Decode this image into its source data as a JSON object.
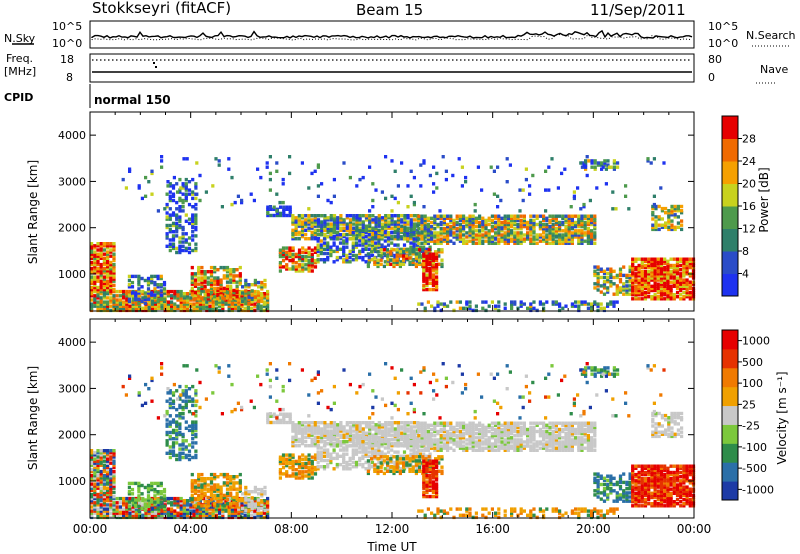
{
  "header": {
    "station": "Stokkseyri (fitACF)",
    "beam": "Beam 15",
    "date": "11/Sep/2011"
  },
  "noise_panel": {
    "left_label": "N.Sky",
    "left_ticks": [
      "10^5",
      "10^0"
    ],
    "right_ticks": [
      "10^5",
      "10^0"
    ],
    "right_label": "N.Search"
  },
  "freq_panel": {
    "left_label_1": "Freq.",
    "left_label_2": "[MHz]",
    "left_ticks": [
      "18",
      "8"
    ],
    "right_ticks": [
      "80",
      "0"
    ],
    "right_label": "Nave"
  },
  "cpid_panel": {
    "left_label": "CPID",
    "mode": "normal 150"
  },
  "colors": {
    "power_scale": [
      "#1e32f0",
      "#2a4cc8",
      "#2f7f6a",
      "#4e9a4c",
      "#c8d21e",
      "#f5a000",
      "#f06a00",
      "#e60000"
    ],
    "velocity_scale": [
      "#1c3aa6",
      "#2a6fa8",
      "#2e8c4a",
      "#7cc83c",
      "#c8c8c8",
      "#f0a000",
      "#f07a00",
      "#e63200",
      "#e60000"
    ]
  },
  "chart_data": [
    {
      "type": "heatmap",
      "title": "Power",
      "xlabel": "Time UT",
      "ylabel": "Slant Range [km]",
      "x_ticks": [
        "00:00",
        "04:00",
        "08:00",
        "12:00",
        "16:00",
        "20:00",
        "00:00"
      ],
      "y_ticks": [
        "1000",
        "2000",
        "3000",
        "4000"
      ],
      "ylim": [
        200,
        4500
      ],
      "colorbar": {
        "label": "Power [dB]",
        "ticks": [
          "4",
          "8",
          "12",
          "16",
          "20",
          "24",
          "28"
        ],
        "range": [
          0,
          32
        ]
      }
    },
    {
      "type": "heatmap",
      "title": "Velocity",
      "xlabel": "Time UT",
      "ylabel": "Slant Range [km]",
      "x_ticks": [
        "00:00",
        "04:00",
        "08:00",
        "12:00",
        "16:00",
        "20:00",
        "00:00"
      ],
      "y_ticks": [
        "1000",
        "2000",
        "3000",
        "4000"
      ],
      "ylim": [
        200,
        4500
      ],
      "colorbar": {
        "label": "Velocity [m s⁻¹]",
        "ticks": [
          "1000",
          "500",
          "100",
          "25",
          "-25",
          "-100",
          "-500",
          "-1000"
        ]
      }
    }
  ]
}
